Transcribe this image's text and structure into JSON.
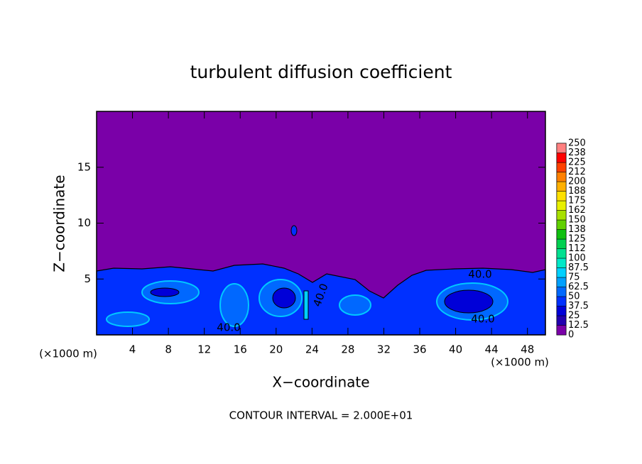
{
  "chart_data": {
    "type": "contour",
    "title": "turbulent diffusion coefficient",
    "x_label": "X−coordinate",
    "y_label": "Z−coordinate",
    "x_scale_label": "(×1000 m)",
    "y_scale_label": "(×1000 m)",
    "footer": "CONTOUR INTERVAL = 2.000E+01",
    "xlim": [
      0,
      50
    ],
    "xticks": [
      4,
      8,
      12,
      16,
      20,
      24,
      28,
      32,
      36,
      40,
      44,
      48
    ],
    "ylim": [
      0,
      20
    ],
    "yticks": [
      5,
      10,
      15
    ],
    "contour_labels": [
      "40.0",
      "40.0",
      "40.0",
      "40.0"
    ],
    "colorbar": {
      "ticks": [
        0,
        12.5,
        25,
        37.5,
        50,
        62.5,
        75,
        87.5,
        100,
        {
          "value": 112.5,
          "label": "112"
        },
        125,
        {
          "value": 137.5,
          "label": "138"
        },
        150,
        {
          "value": 162.5,
          "label": "162"
        },
        175,
        {
          "value": 187.5,
          "label": "188"
        },
        200,
        {
          "value": 212.5,
          "label": "212"
        },
        225,
        {
          "value": 237.5,
          "label": "238"
        },
        250
      ],
      "colors": [
        "#7a00a8",
        "#2200b0",
        "#0000d8",
        "#0030ff",
        "#0068ff",
        "#00a0ff",
        "#00d0ff",
        "#00e8c8",
        "#00e090",
        "#00d050",
        "#10c010",
        "#60d000",
        "#a8e000",
        "#e8f000",
        "#ffe000",
        "#ffb000",
        "#ff8000",
        "#ff4000",
        "#ff0000",
        "#ff8080"
      ]
    }
  }
}
